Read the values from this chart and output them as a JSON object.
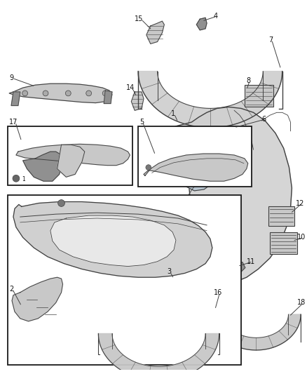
{
  "bg_color": "#ffffff",
  "line_color": "#404040",
  "fig_width": 4.38,
  "fig_height": 5.33,
  "dpi": 100,
  "part_gray": "#c8c8c8",
  "part_dark": "#909090",
  "part_light": "#e0e0e0",
  "box_edge": "#1a1a1a",
  "label_fs": 7.0
}
